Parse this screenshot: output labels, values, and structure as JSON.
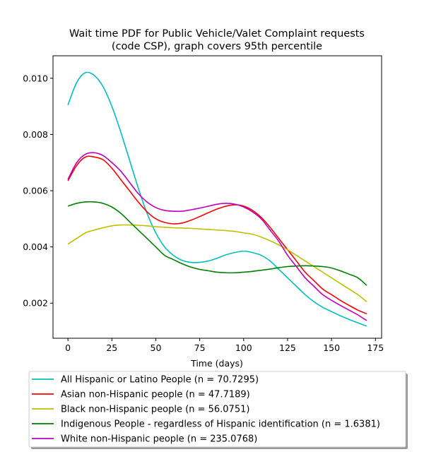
{
  "chart_data": {
    "type": "line",
    "title_lines": [
      "Wait time PDF for Public Vehicle/Valet Complaint  requests",
      "(code CSP), graph covers 95th percentile"
    ],
    "xlabel": "Time (days)",
    "ylabel": "",
    "xlim": [
      -8.5,
      178.5
    ],
    "ylim": [
      0.00075,
      0.0108
    ],
    "x_ticks": [
      0,
      25,
      50,
      75,
      100,
      125,
      150,
      175
    ],
    "x_tick_labels": [
      "0",
      "25",
      "50",
      "75",
      "100",
      "125",
      "150",
      "175"
    ],
    "y_ticks": [
      0.002,
      0.004,
      0.006,
      0.008,
      0.01
    ],
    "y_tick_labels": [
      "0.002",
      "0.004",
      "0.006",
      "0.008",
      "0.010"
    ],
    "grid": false,
    "legend_position": "below",
    "x": [
      0,
      5,
      10,
      15,
      20,
      25,
      30,
      35,
      40,
      45,
      50,
      55,
      60,
      65,
      70,
      75,
      80,
      85,
      90,
      95,
      100,
      105,
      110,
      115,
      120,
      125,
      130,
      135,
      140,
      145,
      150,
      155,
      160,
      165,
      170
    ],
    "series": [
      {
        "name": "All Hispanic or Latino People (n = 70.7295)",
        "color": "#00bfbf",
        "values": [
          0.00905,
          0.00985,
          0.0102,
          0.0101,
          0.0097,
          0.009,
          0.0081,
          0.0071,
          0.0061,
          0.0052,
          0.0045,
          0.004,
          0.0037,
          0.00352,
          0.00345,
          0.00345,
          0.0035,
          0.0036,
          0.00372,
          0.0038,
          0.00385,
          0.0038,
          0.0037,
          0.0035,
          0.0032,
          0.0029,
          0.0026,
          0.0023,
          0.00205,
          0.00185,
          0.0017,
          0.00155,
          0.00142,
          0.0013,
          0.00118
        ]
      },
      {
        "name": "Asian non-Hispanic people (n = 47.7189)",
        "color": "#ff0000",
        "values": [
          0.00635,
          0.0069,
          0.0072,
          0.0072,
          0.0071,
          0.0068,
          0.0064,
          0.006,
          0.0056,
          0.00525,
          0.005,
          0.00487,
          0.00482,
          0.00485,
          0.00495,
          0.00508,
          0.00522,
          0.00535,
          0.00545,
          0.0055,
          0.00545,
          0.0053,
          0.00505,
          0.0047,
          0.0043,
          0.0039,
          0.0035,
          0.0031,
          0.0028,
          0.0025,
          0.0023,
          0.0021,
          0.00192,
          0.00175,
          0.00162
        ]
      },
      {
        "name": "Black non-Hispanic people (n = 56.0751)",
        "color": "#bfbf00",
        "values": [
          0.0041,
          0.0043,
          0.0045,
          0.0046,
          0.00468,
          0.00475,
          0.00478,
          0.00478,
          0.00477,
          0.00475,
          0.00472,
          0.0047,
          0.00468,
          0.00467,
          0.00466,
          0.00464,
          0.00462,
          0.0046,
          0.00458,
          0.00455,
          0.0045,
          0.00445,
          0.00435,
          0.00422,
          0.00407,
          0.0039,
          0.0037,
          0.0035,
          0.0033,
          0.0031,
          0.0029,
          0.0027,
          0.0025,
          0.0023,
          0.00205
        ]
      },
      {
        "name": "Indigenous People - regardless of Hispanic identification (n = 1.6381)",
        "color": "#008000",
        "values": [
          0.00545,
          0.00555,
          0.0056,
          0.0056,
          0.00555,
          0.00542,
          0.0052,
          0.0049,
          0.0046,
          0.0043,
          0.004,
          0.0037,
          0.00355,
          0.0034,
          0.00328,
          0.0032,
          0.00315,
          0.0031,
          0.00308,
          0.00308,
          0.0031,
          0.00313,
          0.00317,
          0.00321,
          0.00326,
          0.0033,
          0.00332,
          0.00333,
          0.00332,
          0.0033,
          0.00325,
          0.00315,
          0.00303,
          0.0029,
          0.00263
        ]
      },
      {
        "name": "White non-Hispanic people (n = 235.0768)",
        "color": "#bf00bf",
        "values": [
          0.0064,
          0.007,
          0.0073,
          0.00735,
          0.00725,
          0.007,
          0.0067,
          0.0063,
          0.0059,
          0.0056,
          0.0054,
          0.0053,
          0.00527,
          0.00527,
          0.00532,
          0.00538,
          0.00545,
          0.00552,
          0.00555,
          0.00552,
          0.00542,
          0.00525,
          0.005,
          0.0046,
          0.0042,
          0.0037,
          0.0033,
          0.0029,
          0.0026,
          0.0023,
          0.0021,
          0.00192,
          0.00175,
          0.00158,
          0.00138
        ]
      }
    ]
  }
}
